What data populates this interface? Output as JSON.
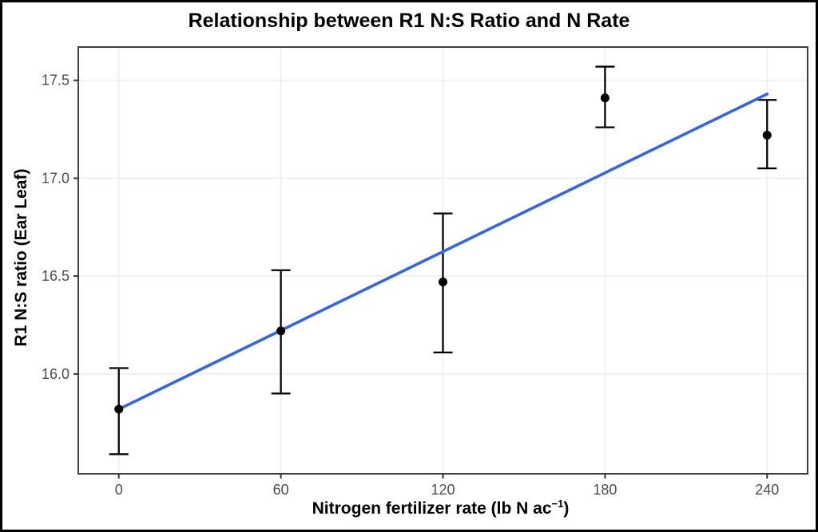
{
  "chart_data": {
    "type": "scatter",
    "title": "Relationship between R1 N:S Ratio and N Rate",
    "xlabel": "Nitrogen fertilizer rate (lb N ac⁻¹)",
    "xlabel_parts": {
      "main": "Nitrogen fertilizer rate (lb N ac",
      "sup": "−1",
      "close": ")"
    },
    "ylabel": "R1 N:S ratio (Ear Leaf)",
    "x": [
      0,
      60,
      120,
      180,
      240
    ],
    "points": {
      "name": "Mean R1 N:S ratio with error bars",
      "y": [
        15.82,
        16.22,
        16.47,
        17.41,
        17.22
      ],
      "y_upper": [
        16.03,
        16.53,
        16.82,
        17.57,
        17.4
      ],
      "y_lower": [
        15.59,
        15.9,
        16.11,
        17.26,
        17.05
      ],
      "color": "#000000"
    },
    "trend_line": {
      "type": "linear regression",
      "x_start": 0,
      "y_start": 15.82,
      "x_end": 240,
      "y_end": 17.43,
      "color": "#3565E0"
    },
    "x_ticks": {
      "values": [
        0,
        60,
        120,
        180,
        240
      ],
      "labels": [
        "0",
        "60",
        "120",
        "180",
        "240"
      ]
    },
    "y_ticks": {
      "values": [
        16.0,
        16.5,
        17.0,
        17.5
      ],
      "labels": [
        "16.0",
        "16.5",
        "17.0",
        "17.5"
      ]
    },
    "xlim": [
      -15,
      255
    ],
    "ylim": [
      15.49,
      17.67
    ],
    "grid": "major",
    "grid_color": "#eeeeee",
    "panel_border_color": "#3f3f3f",
    "axis_tick_color": "#333333",
    "tick_label_color": "#4d4d4d",
    "legend_position": "none"
  }
}
